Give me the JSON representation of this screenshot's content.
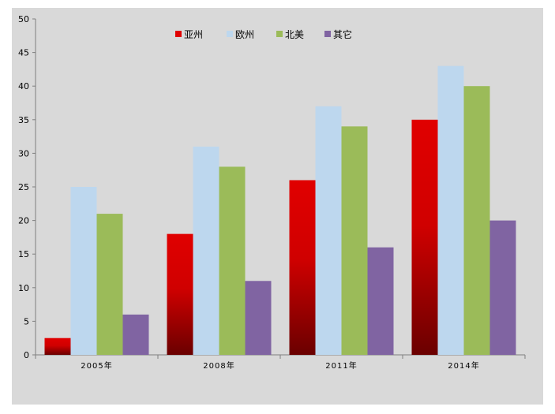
{
  "chart_data": {
    "type": "bar",
    "categories": [
      "2005年",
      "2008年",
      "2011年",
      "2014年"
    ],
    "series": [
      {
        "name": "亚州",
        "values": [
          2.5,
          18,
          26,
          35
        ],
        "color": "#e00000",
        "gradient_bottom": "#6a0000"
      },
      {
        "name": "欧州",
        "values": [
          25,
          31,
          37,
          43
        ],
        "color": "#bdd7ee"
      },
      {
        "name": "北美",
        "values": [
          21,
          28,
          34,
          40
        ],
        "color": "#9bbb59"
      },
      {
        "name": "其它",
        "values": [
          6,
          11,
          16,
          20
        ],
        "color": "#8064a2"
      }
    ],
    "ylim": [
      0,
      50
    ],
    "yticks": [
      "0",
      "5",
      "10",
      "15",
      "20",
      "25",
      "30",
      "35",
      "40",
      "45",
      "50"
    ],
    "legend_position": "top",
    "grid": false,
    "title": "",
    "xlabel": "",
    "ylabel": ""
  }
}
